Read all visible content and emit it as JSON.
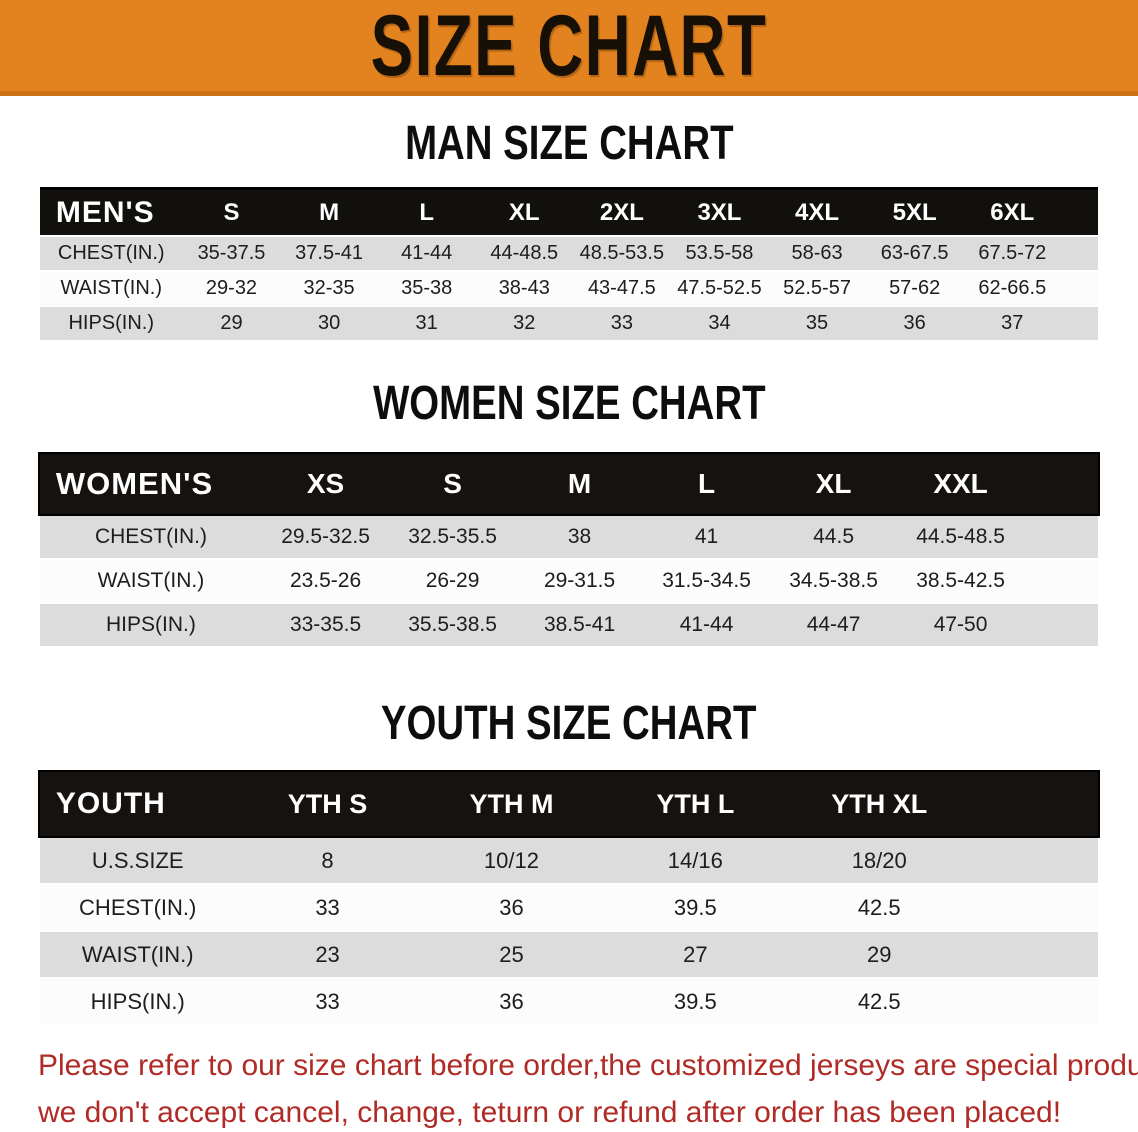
{
  "banner": {
    "title": "SIZE CHART",
    "bg_color": "#e2831f",
    "text_color": "#171007"
  },
  "sections": [
    {
      "heading": "MAN SIZE CHART",
      "table": {
        "corner_label": "MEN'S",
        "columns": [
          "S",
          "M",
          "L",
          "XL",
          "2XL",
          "3XL",
          "4XL",
          "5XL",
          "6XL"
        ],
        "rows": [
          {
            "label": "CHEST(IN.)",
            "values": [
              "35-37.5",
              "37.5-41",
              "41-44",
              "44-48.5",
              "48.5-53.5",
              "53.5-58",
              "58-63",
              "63-67.5",
              "67.5-72"
            ]
          },
          {
            "label": "WAIST(IN.)",
            "values": [
              "29-32",
              "32-35",
              "35-38",
              "38-43",
              "43-47.5",
              "47.5-52.5",
              "52.5-57",
              "57-62",
              "62-66.5"
            ]
          },
          {
            "label": "HIPS(IN.)",
            "values": [
              "29",
              "30",
              "31",
              "32",
              "33",
              "34",
              "35",
              "36",
              "37"
            ]
          }
        ]
      }
    },
    {
      "heading": "WOMEN SIZE CHART",
      "table": {
        "corner_label": "WOMEN'S",
        "columns": [
          "XS",
          "S",
          "M",
          "L",
          "XL",
          "XXL"
        ],
        "rows": [
          {
            "label": "CHEST(IN.)",
            "values": [
              "29.5-32.5",
              "32.5-35.5",
              "38",
              "41",
              "44.5",
              "44.5-48.5"
            ]
          },
          {
            "label": "WAIST(IN.)",
            "values": [
              "23.5-26",
              "26-29",
              "29-31.5",
              "31.5-34.5",
              "34.5-38.5",
              "38.5-42.5"
            ]
          },
          {
            "label": "HIPS(IN.)",
            "values": [
              "33-35.5",
              "35.5-38.5",
              "38.5-41",
              "41-44",
              "44-47",
              "47-50"
            ]
          }
        ]
      }
    },
    {
      "heading": "YOUTH SIZE CHART",
      "table": {
        "corner_label": "YOUTH",
        "columns": [
          "YTH S",
          "YTH M",
          "YTH L",
          "YTH XL"
        ],
        "rows": [
          {
            "label": "U.S.SIZE",
            "values": [
              "8",
              "10/12",
              "14/16",
              "18/20"
            ]
          },
          {
            "label": "CHEST(IN.)",
            "values": [
              "33",
              "36",
              "39.5",
              "42.5"
            ]
          },
          {
            "label": "WAIST(IN.)",
            "values": [
              "23",
              "25",
              "27",
              "29"
            ]
          },
          {
            "label": "HIPS(IN.)",
            "values": [
              "33",
              "36",
              "39.5",
              "42.5"
            ]
          }
        ]
      }
    }
  ],
  "footer": {
    "text_color": "#b02a26",
    "lines": [
      "Please refer to our size chart before order,the customized jerseys are special products,",
      "we don't accept cancel, change, teturn or refund after order has been placed!"
    ]
  },
  "colors": {
    "banner_orange": "#e2831f",
    "header_black": "#12100d",
    "row_gray": "#dcdcdc",
    "row_white": "#fcfcfc",
    "notice_red": "#b02a26"
  }
}
